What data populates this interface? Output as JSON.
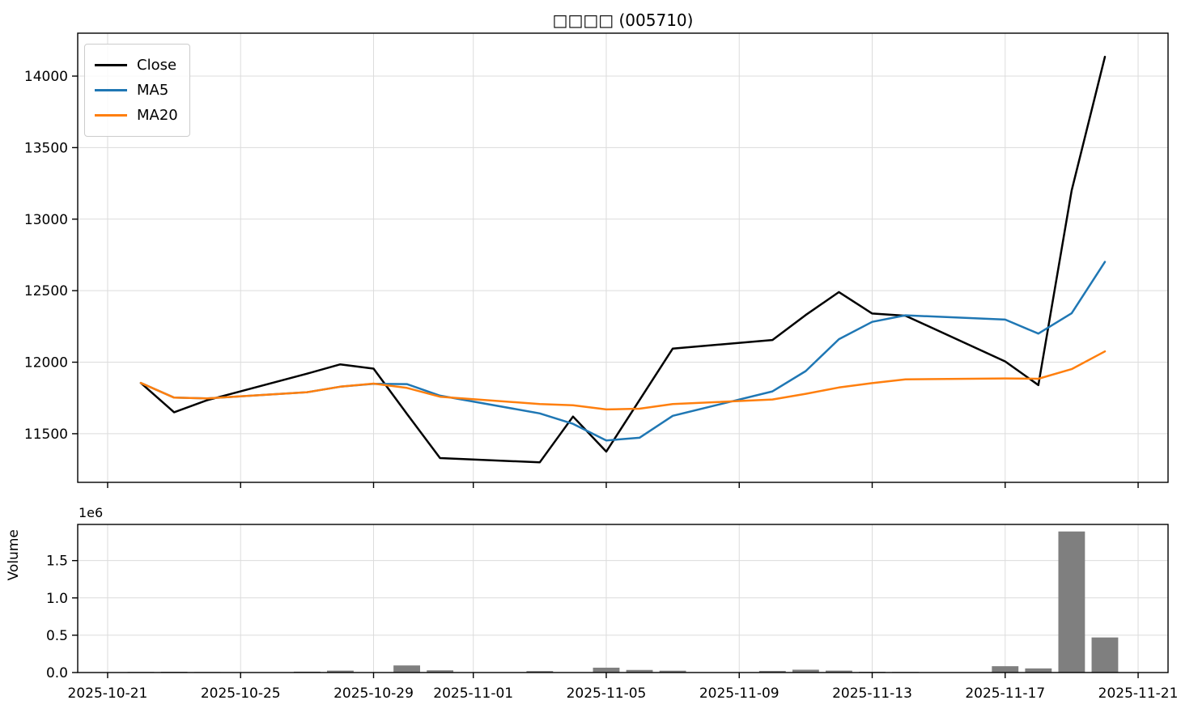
{
  "title": "□□□□ (005710)",
  "legend": {
    "position": "upper left",
    "items": [
      {
        "label": "Close",
        "color": "#000000"
      },
      {
        "label": "MA5",
        "color": "#1f77b4"
      },
      {
        "label": "MA20",
        "color": "#ff7f0e"
      }
    ]
  },
  "volume_axis": {
    "label": "Volume",
    "offset_label": "1e6"
  },
  "colors": {
    "close": "#000000",
    "ma5": "#1f77b4",
    "ma20": "#ff7f0e",
    "bars": "#7f7f7f",
    "grid": "#dcdcdc",
    "spine": "#000000"
  },
  "chart_data": [
    {
      "type": "line",
      "panel": "price",
      "title": "□□□□ (005710)",
      "x": [
        "2025-10-22",
        "2025-10-23",
        "2025-10-24",
        "2025-10-27",
        "2025-10-28",
        "2025-10-29",
        "2025-10-30",
        "2025-10-31",
        "2025-11-03",
        "2025-11-04",
        "2025-11-05",
        "2025-11-06",
        "2025-11-07",
        "2025-11-10",
        "2025-11-11",
        "2025-11-12",
        "2025-11-13",
        "2025-11-14",
        "2025-11-17",
        "2025-11-18",
        "2025-11-19",
        "2025-11-20"
      ],
      "series": [
        {
          "name": "Close",
          "color": "#000000",
          "values": [
            11855,
            11650,
            11735,
            11920,
            11985,
            11955,
            11640,
            11330,
            11300,
            11620,
            11375,
            11735,
            12095,
            12155,
            12330,
            12490,
            12340,
            12325,
            12005,
            11840,
            13200,
            14135
          ]
        },
        {
          "name": "MA5",
          "color": "#1f77b4",
          "values": [
            11855,
            11752.5,
            11746.7,
            11790,
            11829,
            11849,
            11847,
            11766,
            11642,
            11569,
            11453,
            11472,
            11625,
            11796,
            11938,
            12161,
            12282,
            12328,
            12298,
            12200,
            12342,
            12701
          ]
        },
        {
          "name": "MA20",
          "color": "#ff7f0e",
          "values": [
            11855,
            11752.5,
            11746.7,
            11790,
            11829,
            11850,
            11820,
            11758.8,
            11707.8,
            11699,
            11669.5,
            11675,
            11707.3,
            11739.3,
            11778.7,
            11823.1,
            11853.5,
            11879.7,
            11886.3,
            11884,
            11951.3,
            12075.5
          ]
        }
      ],
      "xlabel": "",
      "ylabel": "",
      "ylim": [
        11160,
        14300
      ],
      "yticks": [
        11500,
        12000,
        12500,
        13000,
        13500,
        14000
      ],
      "xtick_dates": [
        "2025-10-21",
        "2025-10-25",
        "2025-10-29",
        "2025-11-01",
        "2025-11-05",
        "2025-11-09",
        "2025-11-13",
        "2025-11-17",
        "2025-11-21"
      ],
      "xlim_days_from_first": [
        -1.9,
        30.9
      ],
      "grid": true,
      "legend_position": "upper left"
    },
    {
      "type": "bar",
      "panel": "volume",
      "x": [
        "2025-10-22",
        "2025-10-23",
        "2025-10-24",
        "2025-10-27",
        "2025-10-28",
        "2025-10-29",
        "2025-10-30",
        "2025-10-31",
        "2025-11-03",
        "2025-11-04",
        "2025-11-05",
        "2025-11-06",
        "2025-11-07",
        "2025-11-10",
        "2025-11-11",
        "2025-11-12",
        "2025-11-13",
        "2025-11-14",
        "2025-11-17",
        "2025-11-18",
        "2025-11-19",
        "2025-11-20"
      ],
      "values": [
        8000,
        10000,
        7000,
        12000,
        26000,
        3000,
        95000,
        30000,
        20000,
        5000,
        65000,
        35000,
        25000,
        22000,
        38000,
        26000,
        10000,
        8000,
        85000,
        55000,
        1890000,
        470000
      ],
      "xlabel": "",
      "ylabel": "Volume",
      "ylim": [
        0,
        1984500
      ],
      "yticks": [
        0,
        500000,
        1000000,
        1500000
      ],
      "ytick_labels": [
        "0.0",
        "0.5",
        "1.0",
        "1.5"
      ],
      "offset_text": "1e6",
      "bar_color": "#7f7f7f",
      "bar_width_days": 0.8,
      "grid": true,
      "xtick_dates": [
        "2025-10-21",
        "2025-10-25",
        "2025-10-29",
        "2025-11-01",
        "2025-11-05",
        "2025-11-09",
        "2025-11-13",
        "2025-11-17",
        "2025-11-21"
      ]
    }
  ]
}
